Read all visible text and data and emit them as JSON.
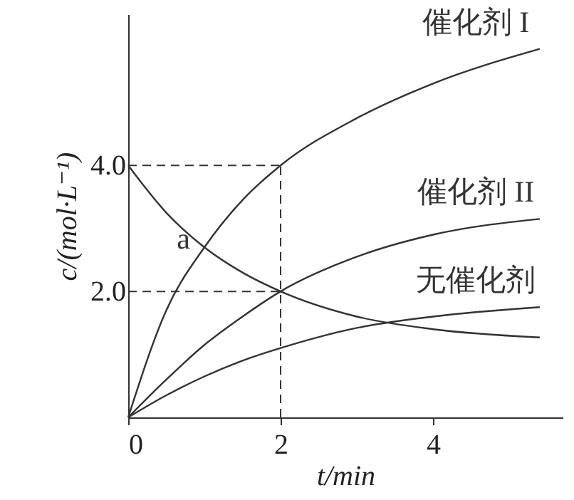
{
  "chart_data": {
    "type": "line",
    "xlabel": "t/min",
    "ylabel": "c/(mol·L⁻¹)",
    "x": [
      0,
      0.5,
      1,
      1.5,
      2,
      3,
      4,
      5.4
    ],
    "series": [
      {
        "name": "催化剂 I",
        "color": "#333333",
        "values": [
          0,
          1.7,
          2.7,
          3.45,
          4.0,
          4.75,
          5.3,
          5.85
        ]
      },
      {
        "name": "催化剂 II",
        "color": "#333333",
        "values": [
          0,
          0.6,
          1.15,
          1.6,
          2.0,
          2.55,
          2.9,
          3.15
        ]
      },
      {
        "name": "无催化剂",
        "color": "#333333",
        "values": [
          0,
          0.35,
          0.65,
          0.9,
          1.1,
          1.42,
          1.6,
          1.75
        ]
      },
      {
        "name": "a",
        "color": "#333333",
        "values": [
          4.0,
          3.25,
          2.7,
          2.3,
          2.0,
          1.6,
          1.4,
          1.27
        ]
      }
    ],
    "ref_lines": [
      {
        "axis": "y",
        "value": 4.0,
        "line_style": "dashed"
      },
      {
        "axis": "y",
        "value": 2.0,
        "line_style": "dashed"
      },
      {
        "axis": "x",
        "value": 2,
        "line_style": "dashed"
      }
    ],
    "xlim": [
      0,
      5.7
    ],
    "ylim": [
      0,
      6.4
    ],
    "xticks": [
      0,
      {
        "value": 2,
        "label": "2"
      },
      4
    ],
    "yticks": [
      {
        "value": 2,
        "label": "2.0"
      },
      {
        "value": 4,
        "label": "4.0"
      }
    ],
    "grid": false,
    "marker": "none",
    "line_style": "solid"
  }
}
